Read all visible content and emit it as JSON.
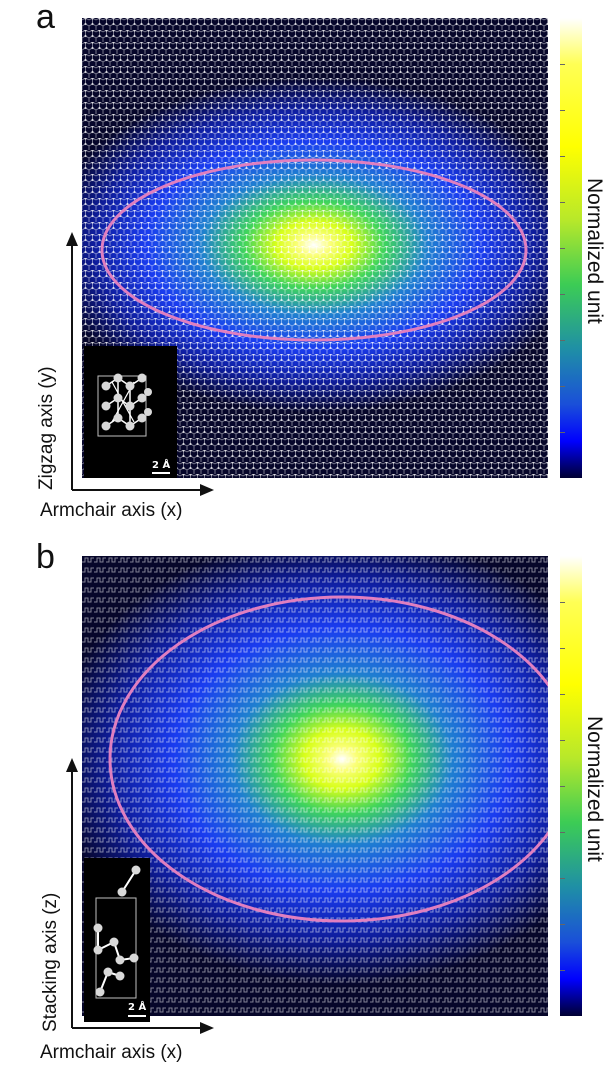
{
  "panels": [
    {
      "letter": "a",
      "colorbar_label": "Normalized unit",
      "y_axis_label": "Zigzag axis (y)",
      "x_axis_label": "Armchair axis (x)",
      "inset_scale": "2 Å",
      "lattice": "honeycomb"
    },
    {
      "letter": "b",
      "colorbar_label": "Normalized unit",
      "y_axis_label": "Stacking axis (z)",
      "x_axis_label": "Armchair axis (x)",
      "inset_scale": "2 Å",
      "lattice": "puckered-layers"
    }
  ],
  "colors": {
    "ellipse": "#e07fc0",
    "map_background": "#06062a",
    "peak": "#ffffff",
    "lattice_dots": "#ffffff"
  }
}
